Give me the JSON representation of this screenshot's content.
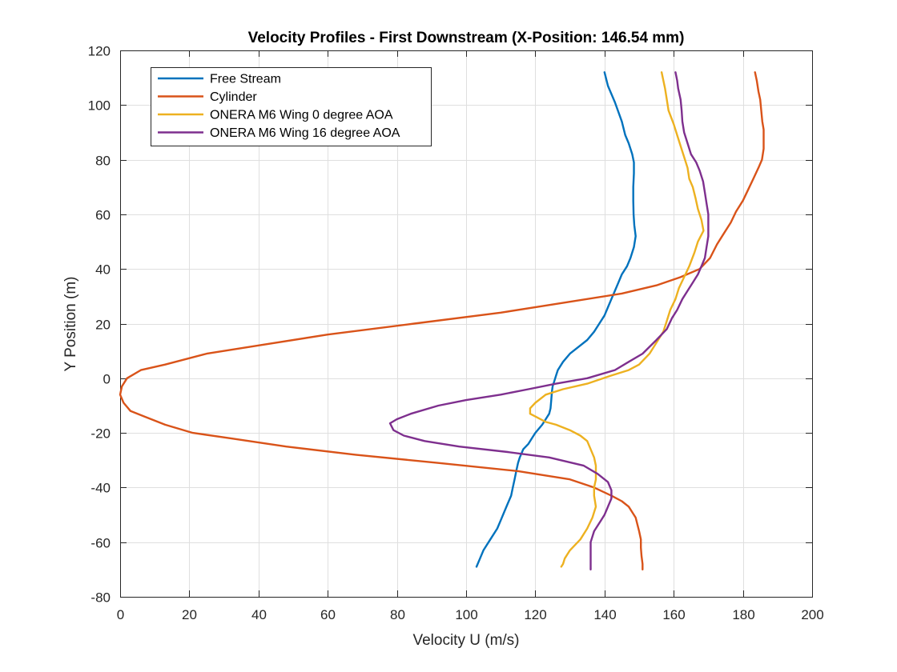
{
  "chart_data": {
    "type": "line",
    "title": "Velocity Profiles - First Downstream (X-Position: 146.54 mm)",
    "xlabel": "Velocity U (m/s)",
    "ylabel": "Y Position (m)",
    "xlim": [
      0,
      200
    ],
    "ylim": [
      -80,
      120
    ],
    "xticks": [
      0,
      20,
      40,
      60,
      80,
      100,
      120,
      140,
      160,
      180,
      200
    ],
    "yticks": [
      -80,
      -60,
      -40,
      -20,
      0,
      20,
      40,
      60,
      80,
      100,
      120
    ],
    "grid": true,
    "legend_position": "top-left",
    "series": [
      {
        "name": "Free Stream",
        "color": "#0072BD",
        "points": [
          [
            140,
            112
          ],
          [
            141,
            107
          ],
          [
            143,
            101
          ],
          [
            145,
            94
          ],
          [
            146,
            89
          ],
          [
            147,
            86
          ],
          [
            148,
            82
          ],
          [
            148.5,
            79
          ],
          [
            148.5,
            75
          ],
          [
            148.3,
            70
          ],
          [
            148.3,
            65
          ],
          [
            148.4,
            60
          ],
          [
            148.6,
            56
          ],
          [
            149,
            52
          ],
          [
            148.5,
            48
          ],
          [
            147.5,
            44
          ],
          [
            146.5,
            41
          ],
          [
            145,
            38
          ],
          [
            144,
            35
          ],
          [
            143,
            32
          ],
          [
            142,
            29
          ],
          [
            141,
            26
          ],
          [
            140,
            23
          ],
          [
            138.5,
            20
          ],
          [
            137,
            17
          ],
          [
            135,
            14
          ],
          [
            133,
            12
          ],
          [
            130,
            9
          ],
          [
            128,
            6
          ],
          [
            126.5,
            3
          ],
          [
            126,
            1
          ],
          [
            125.5,
            -1
          ],
          [
            125,
            -3
          ],
          [
            124.8,
            -5
          ],
          [
            124.6,
            -8
          ],
          [
            124.4,
            -11
          ],
          [
            124,
            -13
          ],
          [
            123,
            -15
          ],
          [
            122,
            -17
          ],
          [
            120,
            -20
          ],
          [
            119,
            -22
          ],
          [
            118,
            -24
          ],
          [
            116.5,
            -26
          ],
          [
            115.5,
            -29
          ],
          [
            115,
            -31
          ],
          [
            114.5,
            -34
          ],
          [
            114,
            -37
          ],
          [
            113.5,
            -40
          ],
          [
            113,
            -43
          ],
          [
            112,
            -46
          ],
          [
            111,
            -49
          ],
          [
            110,
            -52
          ],
          [
            109,
            -55
          ],
          [
            107,
            -59
          ],
          [
            105,
            -63
          ],
          [
            104,
            -66
          ],
          [
            103,
            -69
          ]
        ]
      },
      {
        "name": "Cylinder",
        "color": "#D95319",
        "points": [
          [
            183.5,
            112
          ],
          [
            184,
            109
          ],
          [
            184.5,
            105
          ],
          [
            185,
            102
          ],
          [
            185.3,
            98
          ],
          [
            185.6,
            94
          ],
          [
            186,
            91
          ],
          [
            186,
            88
          ],
          [
            186,
            84
          ],
          [
            185.5,
            80
          ],
          [
            184.5,
            77
          ],
          [
            183,
            73
          ],
          [
            181.5,
            69
          ],
          [
            180,
            65
          ],
          [
            178,
            61
          ],
          [
            176.5,
            57
          ],
          [
            174.5,
            53
          ],
          [
            172.5,
            49
          ],
          [
            170.5,
            44
          ],
          [
            167.5,
            40
          ],
          [
            162,
            37
          ],
          [
            155,
            34
          ],
          [
            145,
            31
          ],
          [
            130,
            28
          ],
          [
            110,
            24
          ],
          [
            85,
            20
          ],
          [
            60,
            16
          ],
          [
            40,
            12
          ],
          [
            25,
            9
          ],
          [
            13,
            5
          ],
          [
            6,
            3
          ],
          [
            2,
            0
          ],
          [
            0.5,
            -3
          ],
          [
            0,
            -6
          ],
          [
            1,
            -9
          ],
          [
            3,
            -12
          ],
          [
            7,
            -14
          ],
          [
            13,
            -17
          ],
          [
            21,
            -20
          ],
          [
            32,
            -22
          ],
          [
            48,
            -25
          ],
          [
            68,
            -28
          ],
          [
            92,
            -31
          ],
          [
            115,
            -34
          ],
          [
            130,
            -37
          ],
          [
            137,
            -40
          ],
          [
            142,
            -43
          ],
          [
            145,
            -45
          ],
          [
            147,
            -47
          ],
          [
            149,
            -51
          ],
          [
            150,
            -56
          ],
          [
            150.5,
            -59
          ],
          [
            150.5,
            -62
          ],
          [
            150.7,
            -65
          ],
          [
            151,
            -68
          ],
          [
            151,
            -70
          ]
        ]
      },
      {
        "name": "ONERA M6 Wing 0 degree AOA",
        "color": "#EDB120",
        "points": [
          [
            156.5,
            112
          ],
          [
            157.5,
            106
          ],
          [
            158,
            102
          ],
          [
            158.5,
            98
          ],
          [
            160,
            93
          ],
          [
            161,
            89
          ],
          [
            162,
            85
          ],
          [
            163,
            81
          ],
          [
            164,
            77
          ],
          [
            164.5,
            73
          ],
          [
            165.5,
            70
          ],
          [
            166.3,
            66
          ],
          [
            167,
            62
          ],
          [
            168,
            58
          ],
          [
            168.6,
            54
          ],
          [
            167,
            50
          ],
          [
            166,
            46
          ],
          [
            164.5,
            41
          ],
          [
            163,
            37
          ],
          [
            161.5,
            33
          ],
          [
            160.5,
            29
          ],
          [
            159,
            25
          ],
          [
            158,
            21
          ],
          [
            157,
            17
          ],
          [
            155,
            13
          ],
          [
            153,
            9
          ],
          [
            150,
            5
          ],
          [
            147,
            3
          ],
          [
            142,
            1
          ],
          [
            135,
            -2
          ],
          [
            128,
            -4
          ],
          [
            123,
            -6
          ],
          [
            120,
            -9
          ],
          [
            118.5,
            -11
          ],
          [
            118.5,
            -13
          ],
          [
            120,
            -14
          ],
          [
            123,
            -16
          ],
          [
            126,
            -17
          ],
          [
            130,
            -19
          ],
          [
            133,
            -21
          ],
          [
            135,
            -23
          ],
          [
            136,
            -26
          ],
          [
            137,
            -29
          ],
          [
            137.5,
            -32
          ],
          [
            137.5,
            -37
          ],
          [
            137,
            -40
          ],
          [
            137,
            -43
          ],
          [
            137.5,
            -47
          ],
          [
            136.5,
            -51
          ],
          [
            135,
            -55
          ],
          [
            133,
            -59
          ],
          [
            130,
            -63
          ],
          [
            128.5,
            -66
          ],
          [
            128,
            -68
          ],
          [
            127.5,
            -69
          ]
        ]
      },
      {
        "name": "ONERA M6 Wing 16 degree AOA",
        "color": "#7E2F8E",
        "points": [
          [
            160.5,
            112
          ],
          [
            161,
            109
          ],
          [
            161.3,
            106
          ],
          [
            162,
            102
          ],
          [
            162.3,
            98
          ],
          [
            162.5,
            94
          ],
          [
            163,
            90
          ],
          [
            164,
            86
          ],
          [
            165,
            82
          ],
          [
            166.5,
            79
          ],
          [
            167.5,
            76
          ],
          [
            168.5,
            72
          ],
          [
            169,
            68
          ],
          [
            169.5,
            64
          ],
          [
            170,
            60
          ],
          [
            170,
            56
          ],
          [
            170,
            52
          ],
          [
            169.5,
            48
          ],
          [
            169,
            44
          ],
          [
            168,
            41
          ],
          [
            167,
            38
          ],
          [
            165.5,
            35
          ],
          [
            164,
            32
          ],
          [
            162.5,
            29
          ],
          [
            161,
            25
          ],
          [
            159.5,
            22
          ],
          [
            158,
            18
          ],
          [
            155,
            14
          ],
          [
            151,
            9
          ],
          [
            147,
            6
          ],
          [
            143,
            3
          ],
          [
            135,
            0
          ],
          [
            126,
            -2
          ],
          [
            118,
            -4
          ],
          [
            110,
            -6
          ],
          [
            100,
            -8
          ],
          [
            92,
            -10
          ],
          [
            84,
            -13
          ],
          [
            80,
            -15
          ],
          [
            78,
            -16.5
          ],
          [
            79,
            -19
          ],
          [
            82,
            -21
          ],
          [
            88,
            -23
          ],
          [
            98,
            -25
          ],
          [
            112,
            -27
          ],
          [
            124,
            -29
          ],
          [
            134,
            -32
          ],
          [
            138,
            -35
          ],
          [
            141,
            -38
          ],
          [
            142,
            -41
          ],
          [
            142,
            -44
          ],
          [
            141,
            -47
          ],
          [
            140,
            -50
          ],
          [
            139,
            -52
          ],
          [
            137,
            -56
          ],
          [
            136,
            -60
          ],
          [
            136,
            -64
          ],
          [
            136,
            -67
          ],
          [
            136,
            -70
          ]
        ]
      }
    ]
  }
}
